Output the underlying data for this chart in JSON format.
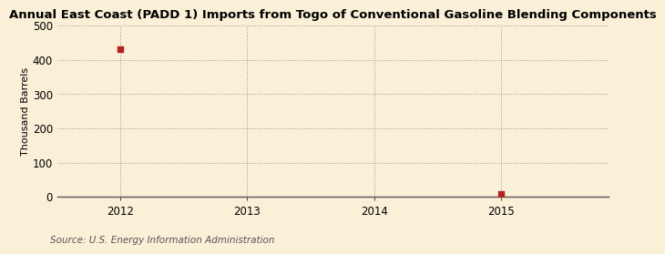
{
  "title": "Annual East Coast (PADD 1) Imports from Togo of Conventional Gasoline Blending Components",
  "ylabel": "Thousand Barrels",
  "source": "Source: U.S. Energy Information Administration",
  "background_color": "#faefd7",
  "plot_bg_color": "#faefd7",
  "points": [
    {
      "year": 2012,
      "value": 430
    },
    {
      "year": 2015,
      "value": 8
    }
  ],
  "marker_color": "#b22222",
  "marker_size": 20,
  "marker_style": "s",
  "xlim": [
    2011.5,
    2015.85
  ],
  "ylim": [
    0,
    500
  ],
  "yticks": [
    0,
    100,
    200,
    300,
    400,
    500
  ],
  "xticks": [
    2012,
    2013,
    2014,
    2015
  ],
  "grid_color": "#999999",
  "grid_linestyle": ":",
  "title_fontsize": 9.5,
  "axis_fontsize": 8.5,
  "ylabel_fontsize": 8,
  "source_fontsize": 7.5,
  "spine_color": "#555555"
}
